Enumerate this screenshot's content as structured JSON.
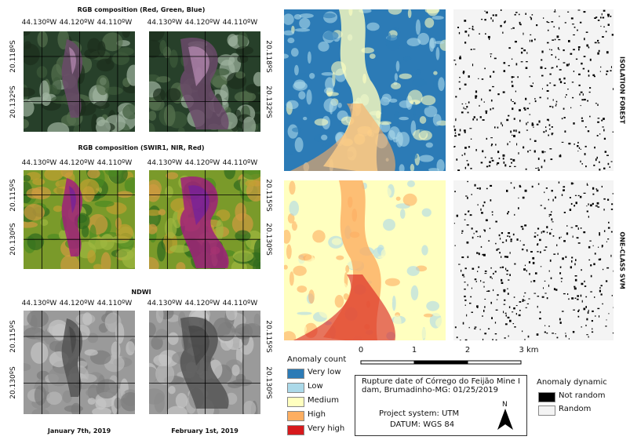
{
  "panels": [
    {
      "title": "RGB composition (Red, Green, Blue)",
      "lon_labels": [
        "44.130ºW",
        "44.120ºW",
        "44.110ºW"
      ],
      "lat_labels": [
        "20.118ºS",
        "20.132ºS"
      ]
    },
    {
      "title": "RGB composition (SWIR1, NIR, Red)",
      "lon_labels": [
        "44.130ºW",
        "44.120ºW",
        "44.110ºW"
      ],
      "lat_labels": [
        "20.115ºS",
        "20.130ºS"
      ]
    },
    {
      "title": "NDWI",
      "lon_labels": [
        "44.130ºW",
        "44.120ºW",
        "44.110ºW"
      ],
      "lat_labels": [
        "20.115ºS",
        "20.130ºS"
      ]
    }
  ],
  "dates": [
    "January 7th, 2019",
    "February 1st, 2019"
  ],
  "models": [
    "ISOLATION FOREST",
    "ONE-CLASS SVM"
  ],
  "anomaly_count": {
    "title": "Anomaly count",
    "classes": [
      {
        "label": "Very low",
        "color": "#2c7bb6"
      },
      {
        "label": "Low",
        "color": "#abd9e9"
      },
      {
        "label": "Medium",
        "color": "#ffffbf"
      },
      {
        "label": "High",
        "color": "#fdae61"
      },
      {
        "label": "Very high",
        "color": "#d7191c"
      }
    ]
  },
  "scale_bar": {
    "labels": [
      "0",
      "1",
      "2",
      "3 km"
    ]
  },
  "info": {
    "rupture": "Rupture date of Córrego do Feijão Mine I dam, Brumadinho-MG: 01/25/2019",
    "projection": "Project system: UTM",
    "datum": "DATUM: WGS 84",
    "north": "N"
  },
  "anomaly_dynamic": {
    "title": "Anomaly dynamic",
    "classes": [
      {
        "label": "Not random",
        "color": "#000000"
      },
      {
        "label": "Random",
        "color": "#f4f4f4"
      }
    ]
  }
}
